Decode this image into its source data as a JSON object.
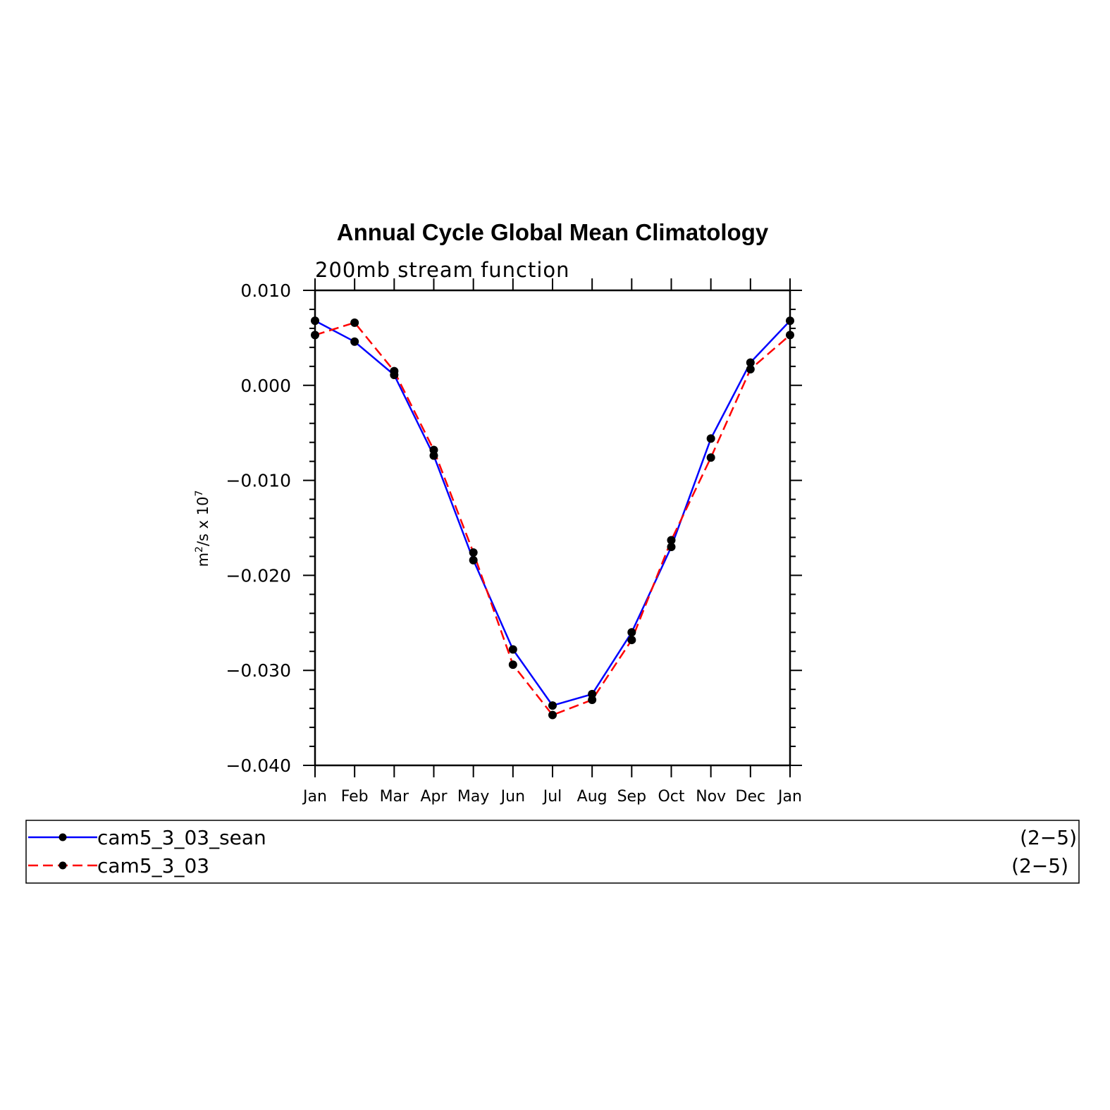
{
  "chart_data": {
    "type": "line",
    "title": "Annual Cycle Global Mean Climatology",
    "subtitle": "200mb stream function",
    "ylabel": {
      "base": "m",
      "sup1": "2",
      "mid": "/s x 10",
      "sup2": "7"
    },
    "ylim": [
      -0.04,
      0.01
    ],
    "yticks": [
      "0.010",
      "0.000",
      "−0.010",
      "−0.020",
      "−0.030",
      "−0.040"
    ],
    "categories": [
      "Jan",
      "Feb",
      "Mar",
      "Apr",
      "May",
      "Jun",
      "Jul",
      "Aug",
      "Sep",
      "Oct",
      "Nov",
      "Dec",
      "Jan"
    ],
    "series": [
      {
        "name": "cam5_3_03_sean",
        "range": "(2−5)",
        "color": "#0000ff",
        "dash": "solid",
        "values": [
          0.0068,
          0.0046,
          0.0011,
          -0.0074,
          -0.0184,
          -0.0278,
          -0.0337,
          -0.0325,
          -0.026,
          -0.017,
          -0.0056,
          0.0024,
          0.0068
        ]
      },
      {
        "name": "cam5_3_03",
        "range": "(2−5)",
        "color": "#ff0000",
        "dash": "dashed",
        "values": [
          0.0053,
          0.0066,
          0.0015,
          -0.0068,
          -0.0176,
          -0.0294,
          -0.0347,
          -0.0331,
          -0.0268,
          -0.0163,
          -0.0076,
          0.0017,
          0.0053
        ]
      }
    ],
    "marker_color": "#000000",
    "grid": false,
    "legend_position": "bottom"
  }
}
